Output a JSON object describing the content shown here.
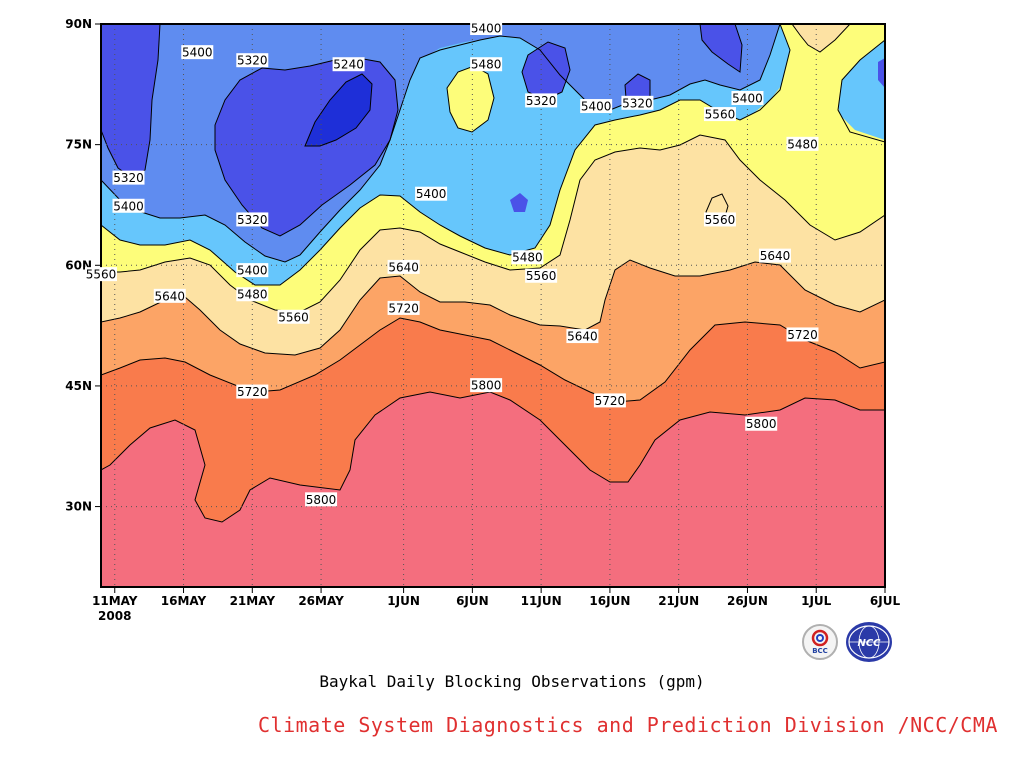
{
  "caption": "Baykal Daily Blocking Observations (gpm)",
  "credit": "Climate System Diagnostics and Prediction Division /NCC/CMA",
  "logos": {
    "left_text": "BCC",
    "right_text": "NCC"
  },
  "chart_data": {
    "type": "contour",
    "title": "",
    "xlabel": "",
    "ylabel": "",
    "x_ticks": [
      "11MAY",
      "16MAY",
      "21MAY",
      "26MAY",
      "1JUN",
      "6JUN",
      "11JUN",
      "16JUN",
      "21JUN",
      "26JUN",
      "1JUL",
      "6JUL"
    ],
    "x_year_label": "2008",
    "y_ticks": [
      "30N",
      "45N",
      "60N",
      "75N",
      "90N"
    ],
    "xlim": [
      "2008-05-10",
      "2008-07-06"
    ],
    "ylim": [
      20,
      90
    ],
    "levels": [
      5240,
      5320,
      5400,
      5480,
      5560,
      5640,
      5720,
      5800
    ],
    "level_colors": {
      "below_5240": "#1e2fd8",
      "5240_5320": "#4a52e8",
      "5320_5400": "#5f8cf0",
      "5400_5480": "#66c6fc",
      "5480_5560": "#fdfd7a",
      "5560_5640": "#fde2a3",
      "5640_5720": "#fca466",
      "5720_5800": "#f97b4c",
      "above_5800": "#f46e7e"
    },
    "contour_labels": [
      {
        "value": "5400",
        "date": "2008-05-17",
        "lat": 86.5
      },
      {
        "value": "5320",
        "date": "2008-05-21",
        "lat": 85.5
      },
      {
        "value": "5240",
        "date": "2008-05-28",
        "lat": 85.0
      },
      {
        "value": "5400",
        "date": "2008-06-07",
        "lat": 89.5
      },
      {
        "value": "5480",
        "date": "2008-06-07",
        "lat": 85.0
      },
      {
        "value": "5320",
        "date": "2008-06-11",
        "lat": 80.5
      },
      {
        "value": "5400",
        "date": "2008-06-15",
        "lat": 79.8
      },
      {
        "value": "5320",
        "date": "2008-06-18",
        "lat": 80.2
      },
      {
        "value": "5400",
        "date": "2008-06-26",
        "lat": 80.8
      },
      {
        "value": "5560",
        "date": "2008-06-24",
        "lat": 78.8
      },
      {
        "value": "5480",
        "date": "2008-06-30",
        "lat": 75.1
      },
      {
        "value": "5320",
        "date": "2008-05-12",
        "lat": 70.9
      },
      {
        "value": "5400",
        "date": "2008-05-12",
        "lat": 67.4
      },
      {
        "value": "5320",
        "date": "2008-05-21",
        "lat": 65.7
      },
      {
        "value": "5400",
        "date": "2008-06-03",
        "lat": 68.9
      },
      {
        "value": "5560",
        "date": "2008-06-24",
        "lat": 65.7
      },
      {
        "value": "5400",
        "date": "2008-05-21",
        "lat": 59.4
      },
      {
        "value": "5560",
        "date": "2008-05-10",
        "lat": 58.9
      },
      {
        "value": "5640",
        "date": "2008-06-01",
        "lat": 59.8
      },
      {
        "value": "5480",
        "date": "2008-06-10",
        "lat": 61.0
      },
      {
        "value": "5640",
        "date": "2008-06-28",
        "lat": 61.2
      },
      {
        "value": "5560",
        "date": "2008-06-11",
        "lat": 58.7
      },
      {
        "value": "5640",
        "date": "2008-05-15",
        "lat": 56.2
      },
      {
        "value": "5480",
        "date": "2008-05-21",
        "lat": 56.4
      },
      {
        "value": "5560",
        "date": "2008-05-24",
        "lat": 53.6
      },
      {
        "value": "5720",
        "date": "2008-06-01",
        "lat": 54.7
      },
      {
        "value": "5640",
        "date": "2008-06-14",
        "lat": 51.2
      },
      {
        "value": "5720",
        "date": "2008-06-30",
        "lat": 51.4
      },
      {
        "value": "5720",
        "date": "2008-05-21",
        "lat": 44.3
      },
      {
        "value": "5800",
        "date": "2008-06-07",
        "lat": 45.1
      },
      {
        "value": "5720",
        "date": "2008-06-16",
        "lat": 43.2
      },
      {
        "value": "5800",
        "date": "2008-06-27",
        "lat": 40.3
      },
      {
        "value": "5800",
        "date": "2008-05-26",
        "lat": 30.9
      }
    ]
  }
}
